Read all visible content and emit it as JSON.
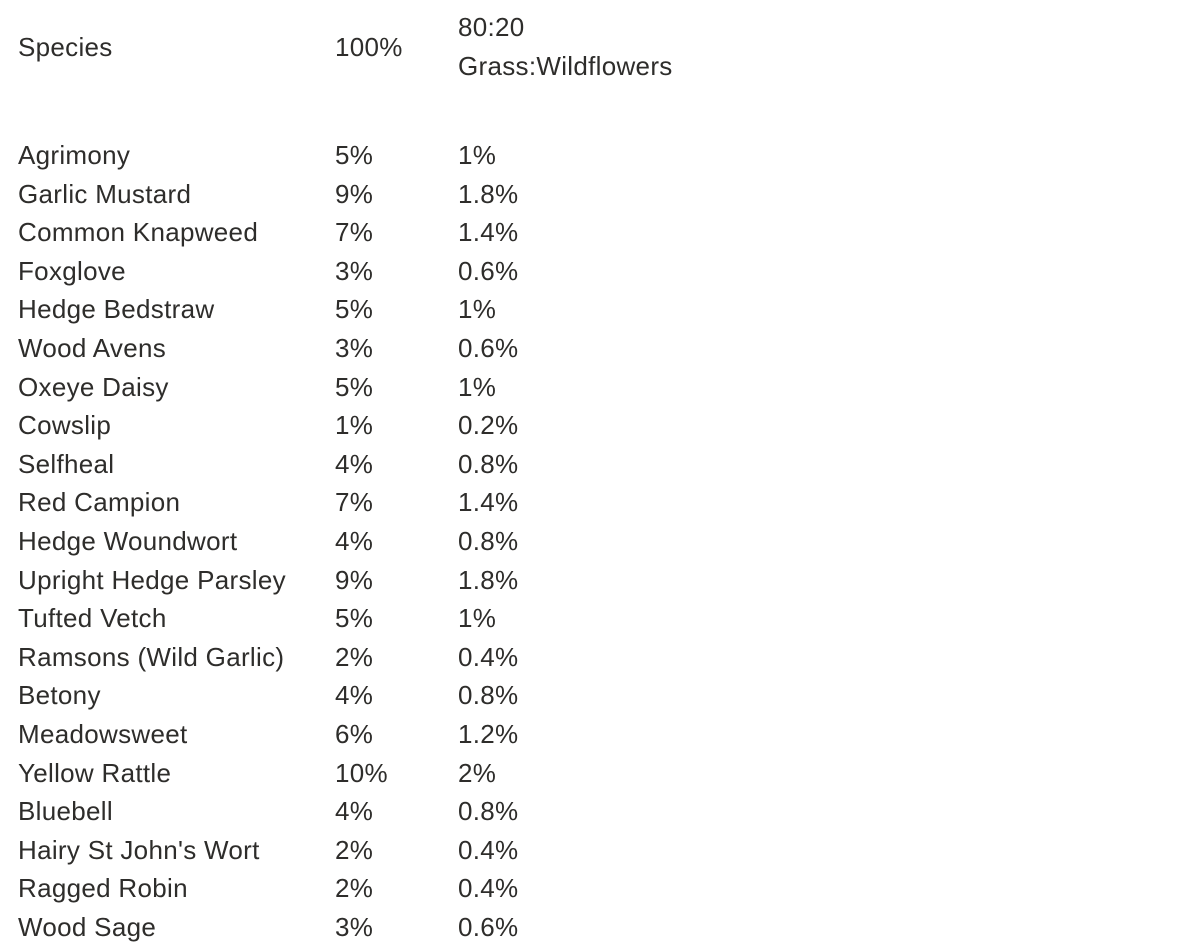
{
  "table": {
    "headers": {
      "species": "Species",
      "full_mix": "100%",
      "grass_mix": "80:20\nGrass:Wildflowers"
    },
    "rows": [
      {
        "species": "Agrimony",
        "full": "5%",
        "mix": "1%"
      },
      {
        "species": "Garlic Mustard",
        "full": "9%",
        "mix": "1.8%"
      },
      {
        "species": "Common Knapweed",
        "full": "7%",
        "mix": "1.4%"
      },
      {
        "species": "Foxglove",
        "full": "3%",
        "mix": "0.6%"
      },
      {
        "species": "Hedge Bedstraw",
        "full": "5%",
        "mix": "1%"
      },
      {
        "species": "Wood Avens",
        "full": "3%",
        "mix": "0.6%"
      },
      {
        "species": "Oxeye Daisy",
        "full": "5%",
        "mix": "1%"
      },
      {
        "species": "Cowslip",
        "full": "1%",
        "mix": "0.2%"
      },
      {
        "species": "Selfheal",
        "full": "4%",
        "mix": "0.8%"
      },
      {
        "species": "Red Campion",
        "full": "7%",
        "mix": "1.4%"
      },
      {
        "species": "Hedge Woundwort",
        "full": "4%",
        "mix": "0.8%"
      },
      {
        "species": "Upright Hedge Parsley",
        "full": "9%",
        "mix": "1.8%"
      },
      {
        "species": "Tufted Vetch",
        "full": "5%",
        "mix": "1%"
      },
      {
        "species": "Ramsons (Wild Garlic)",
        "full": "2%",
        "mix": "0.4%"
      },
      {
        "species": "Betony",
        "full": "4%",
        "mix": "0.8%"
      },
      {
        "species": "Meadowsweet",
        "full": "6%",
        "mix": "1.2%"
      },
      {
        "species": "Yellow Rattle",
        "full": "10%",
        "mix": "2%"
      },
      {
        "species": "Bluebell",
        "full": "4%",
        "mix": "0.8%"
      },
      {
        "species": "Hairy St John's Wort",
        "full": "2%",
        "mix": "0.4%"
      },
      {
        "species": "Ragged Robin",
        "full": "2%",
        "mix": "0.4%"
      },
      {
        "species": "Wood Sage",
        "full": "3%",
        "mix": "0.6%"
      }
    ],
    "colors": {
      "text": "#2e2d2b",
      "background": "#ffffff"
    }
  }
}
